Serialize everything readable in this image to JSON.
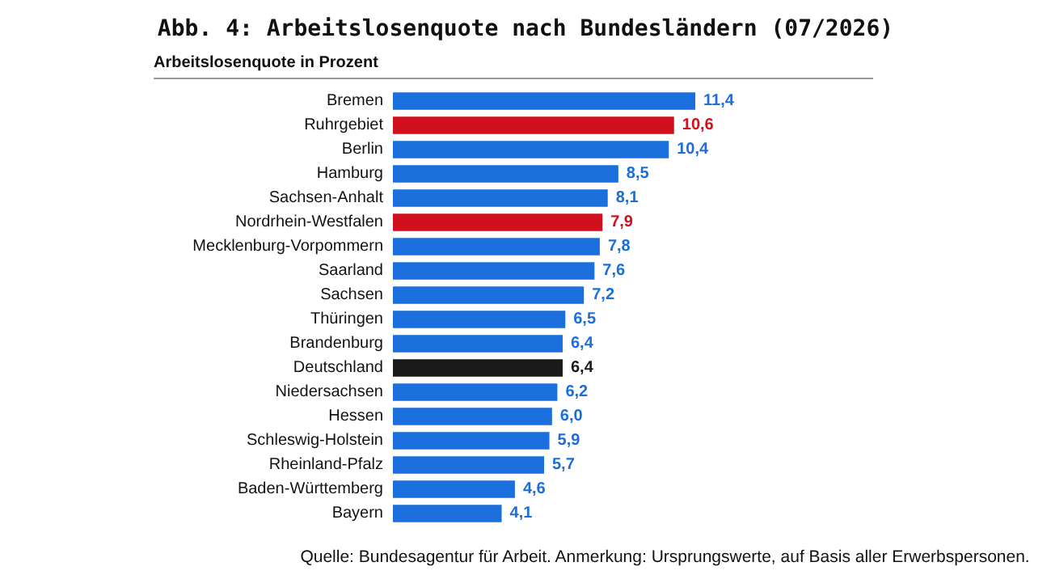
{
  "chart_data": {
    "type": "bar",
    "orientation": "horizontal",
    "title": "Abb. 4: Arbeitslosenquote nach Bundesländern (07/2026)",
    "subtitle": "Arbeitslosenquote in Prozent",
    "categories": [
      "Bremen",
      "Ruhrgebiet",
      "Berlin",
      "Hamburg",
      "Sachsen-Anhalt",
      "Nordrhein-Westfalen",
      "Mecklenburg-Vorpommern",
      "Saarland",
      "Sachsen",
      "Thüringen",
      "Brandenburg",
      "Deutschland",
      "Niedersachsen",
      "Hessen",
      "Schleswig-Holstein",
      "Rheinland-Pfalz",
      "Baden-Württemberg",
      "Bayern"
    ],
    "values": [
      11.4,
      10.6,
      10.4,
      8.5,
      8.1,
      7.9,
      7.8,
      7.6,
      7.2,
      6.5,
      6.4,
      6.4,
      6.2,
      6.0,
      5.9,
      5.7,
      4.6,
      4.1
    ],
    "value_labels": [
      "11,4",
      "10,6",
      "10,4",
      "8,5",
      "8,1",
      "7,9",
      "7,8",
      "7,6",
      "7,2",
      "6,5",
      "6,4",
      "6,4",
      "6,2",
      "6,0",
      "5,9",
      "5,7",
      "4,6",
      "4,1"
    ],
    "colors": [
      "#1a6fdc",
      "#d0101c",
      "#1a6fdc",
      "#1a6fdc",
      "#1a6fdc",
      "#d0101c",
      "#1a6fdc",
      "#1a6fdc",
      "#1a6fdc",
      "#1a6fdc",
      "#1a6fdc",
      "#1a1a1a",
      "#1a6fdc",
      "#1a6fdc",
      "#1a6fdc",
      "#1a6fdc",
      "#1a6fdc",
      "#1a6fdc"
    ],
    "annotations": [
      "Quelle: Bundesagentur für Arbeit. Anmerkung: Ursprungswerte, auf Basis aller Erwerbspersonen."
    ]
  }
}
